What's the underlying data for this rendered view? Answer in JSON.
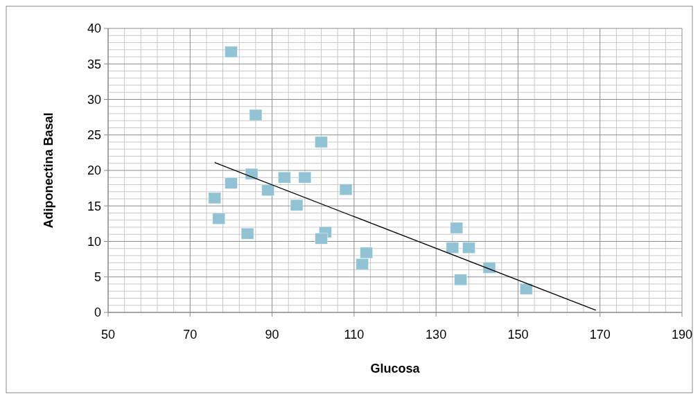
{
  "chart_data": {
    "type": "scatter",
    "xlabel": "Glucosa",
    "ylabel": "Adiponectina Basal",
    "xlim": [
      50,
      190
    ],
    "xticks": [
      50,
      70,
      90,
      110,
      130,
      150,
      170,
      190
    ],
    "ylim": [
      0,
      40
    ],
    "yticks": [
      0,
      5,
      10,
      15,
      20,
      25,
      30,
      35,
      40
    ],
    "grid": true,
    "series": [
      {
        "color": "#92c3d4",
        "marker": "square",
        "x": [
          80,
          86,
          102,
          85,
          80,
          93,
          98,
          108,
          89,
          76,
          96,
          77,
          84,
          103,
          102,
          113,
          112,
          135,
          134,
          138,
          136,
          143,
          152
        ],
        "values": [
          36.7,
          27.8,
          24.0,
          19.5,
          18.2,
          19.0,
          19.0,
          17.3,
          17.2,
          16.1,
          15.1,
          13.2,
          11.1,
          11.3,
          10.4,
          8.4,
          6.8,
          11.9,
          9.1,
          9.1,
          4.6,
          6.3,
          3.3
        ]
      },
      {
        "type": "line",
        "color": "#000000",
        "line_style": "solid",
        "x": [
          76,
          169
        ],
        "values": [
          21.1,
          0.3
        ]
      }
    ]
  }
}
